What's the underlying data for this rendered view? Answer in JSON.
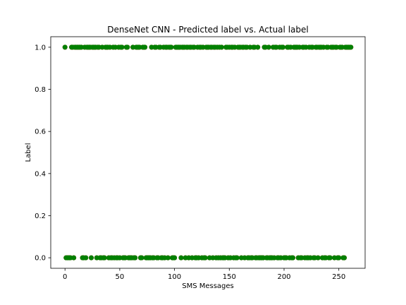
{
  "chart_data": {
    "type": "scatter",
    "title": "DenseNet CNN - Predicted label vs. Actual label",
    "xlabel": "SMS Messages",
    "ylabel": "Label",
    "xlim": [
      -13,
      274
    ],
    "ylim": [
      -0.05,
      1.05
    ],
    "xticks": [
      0,
      50,
      100,
      150,
      200,
      250
    ],
    "yticks": [
      0.0,
      0.2,
      0.4,
      0.6,
      0.8,
      1.0
    ],
    "xtick_labels": [
      "0",
      "50",
      "100",
      "150",
      "200",
      "250"
    ],
    "ytick_labels": [
      "0.0",
      "0.2",
      "0.4",
      "0.6",
      "0.8",
      "1.0"
    ],
    "grid": false,
    "series": [
      {
        "role": "actual",
        "color": "#ff0000",
        "x": [
          0,
          1,
          2,
          3,
          4,
          5,
          6,
          7,
          8,
          9,
          10,
          11,
          12,
          13,
          14,
          15,
          16,
          17,
          18,
          19,
          20,
          21,
          22,
          23,
          24,
          25,
          26,
          27,
          28,
          29,
          30,
          31,
          32,
          33,
          34,
          35,
          36,
          37,
          38,
          39,
          40,
          41,
          42,
          43,
          44,
          45,
          46,
          47,
          48,
          49,
          50,
          51,
          52,
          53,
          54,
          55,
          56,
          57,
          58,
          59,
          60,
          61,
          62,
          63,
          64,
          65,
          66,
          67,
          68,
          69,
          70,
          71,
          72,
          73,
          74,
          75,
          76,
          77,
          78,
          79,
          80,
          81,
          82,
          83,
          84,
          85,
          86,
          87,
          88,
          89,
          90,
          91,
          92,
          93,
          94,
          95,
          96,
          97,
          98,
          99,
          100,
          101,
          102,
          103,
          104,
          105,
          106,
          107,
          108,
          109,
          110,
          111,
          112,
          113,
          114,
          115,
          116,
          117,
          118,
          119,
          120,
          121,
          122,
          123,
          124,
          125,
          126,
          127,
          128,
          129,
          130,
          131,
          132,
          133,
          134,
          135,
          136,
          137,
          138,
          139,
          140,
          141,
          142,
          143,
          144,
          145,
          146,
          147,
          148,
          149,
          150,
          151,
          152,
          153,
          154,
          155,
          156,
          157,
          158,
          159,
          160,
          161,
          162,
          163,
          164,
          165,
          166,
          167,
          168,
          169,
          170,
          171,
          172,
          173,
          174,
          175,
          176,
          177,
          178,
          179,
          180,
          181,
          182,
          183,
          184,
          185,
          186,
          187,
          188,
          189,
          190,
          191,
          192,
          193,
          194,
          195,
          196,
          197,
          198,
          199,
          200,
          201,
          202,
          203,
          204,
          205,
          206,
          207,
          208,
          209,
          210,
          211,
          212,
          213,
          214,
          215,
          216,
          217,
          218,
          219,
          220,
          221,
          222,
          223,
          224,
          225,
          226,
          227,
          228,
          229,
          230,
          231,
          232,
          233,
          234,
          235,
          236,
          237,
          238,
          239,
          240,
          241,
          242,
          243,
          244,
          245,
          246,
          247,
          248,
          249,
          250,
          251,
          252,
          253,
          254,
          255,
          256,
          257,
          258,
          259,
          260,
          261
        ],
        "y": [
          1,
          0,
          0,
          0,
          0,
          0,
          1,
          1,
          0,
          1,
          1,
          1,
          1,
          1,
          1,
          1,
          0,
          0,
          1,
          0,
          1,
          1,
          1,
          1,
          0,
          1,
          1,
          1,
          1,
          0,
          1,
          1,
          0,
          0,
          1,
          0,
          0,
          1,
          1,
          1,
          0,
          1,
          0,
          0,
          1,
          0,
          1,
          0,
          0,
          1,
          0,
          1,
          1,
          0,
          0,
          0,
          1,
          1,
          0,
          0,
          0,
          0,
          1,
          0,
          0,
          1,
          1,
          1,
          1,
          0,
          0,
          1,
          1,
          1,
          0,
          0,
          0,
          0,
          0,
          1,
          0,
          0,
          1,
          1,
          0,
          0,
          1,
          1,
          0,
          0,
          1,
          0,
          1,
          1,
          0,
          1,
          1,
          1,
          0,
          0,
          0,
          1,
          1,
          1,
          1,
          1,
          0,
          1,
          1,
          1,
          0,
          1,
          1,
          0,
          1,
          1,
          0,
          1,
          1,
          0,
          0,
          1,
          0,
          1,
          1,
          0,
          1,
          0,
          0,
          1,
          1,
          1,
          0,
          1,
          1,
          0,
          1,
          1,
          0,
          1,
          0,
          1,
          0,
          1,
          0,
          0,
          0,
          1,
          1,
          0,
          1,
          0,
          1,
          1,
          0,
          1,
          0,
          0,
          1,
          1,
          1,
          0,
          1,
          1,
          0,
          1,
          1,
          0,
          0,
          1,
          0,
          0,
          1,
          1,
          0,
          0,
          1,
          0,
          0,
          0,
          0,
          0,
          1,
          1,
          0,
          0,
          1,
          0,
          0,
          0,
          1,
          0,
          1,
          1,
          0,
          0,
          1,
          0,
          1,
          1,
          0,
          0,
          0,
          1,
          1,
          0,
          1,
          0,
          0,
          1,
          1,
          1,
          1,
          0,
          1,
          0,
          0,
          1,
          1,
          0,
          1,
          0,
          0,
          1,
          0,
          1,
          1,
          0,
          0,
          1,
          1,
          0,
          1,
          1,
          1,
          0,
          1,
          0,
          0,
          1,
          1,
          0,
          0,
          1,
          1,
          1,
          0,
          1,
          1,
          0,
          0,
          1,
          1,
          1,
          0,
          0,
          1,
          1,
          1,
          1,
          1,
          1
        ]
      },
      {
        "role": "predicted",
        "color": "#008000",
        "x": [
          0,
          1,
          2,
          3,
          4,
          5,
          6,
          7,
          8,
          9,
          10,
          11,
          12,
          13,
          14,
          15,
          16,
          17,
          18,
          19,
          20,
          21,
          22,
          23,
          24,
          25,
          26,
          27,
          28,
          29,
          30,
          31,
          32,
          33,
          34,
          35,
          36,
          37,
          38,
          39,
          40,
          41,
          42,
          43,
          44,
          45,
          46,
          47,
          48,
          49,
          50,
          51,
          52,
          53,
          54,
          55,
          56,
          57,
          58,
          59,
          60,
          61,
          62,
          63,
          64,
          65,
          66,
          67,
          68,
          69,
          70,
          71,
          72,
          73,
          74,
          75,
          76,
          77,
          78,
          79,
          80,
          81,
          82,
          83,
          84,
          85,
          86,
          87,
          88,
          89,
          90,
          91,
          92,
          93,
          94,
          95,
          96,
          97,
          98,
          99,
          100,
          101,
          102,
          103,
          104,
          105,
          106,
          107,
          108,
          109,
          110,
          111,
          112,
          113,
          114,
          115,
          116,
          117,
          118,
          119,
          120,
          121,
          122,
          123,
          124,
          125,
          126,
          127,
          128,
          129,
          130,
          131,
          132,
          133,
          134,
          135,
          136,
          137,
          138,
          139,
          140,
          141,
          142,
          143,
          144,
          145,
          146,
          147,
          148,
          149,
          150,
          151,
          152,
          153,
          154,
          155,
          156,
          157,
          158,
          159,
          160,
          161,
          162,
          163,
          164,
          165,
          166,
          167,
          168,
          169,
          170,
          171,
          172,
          173,
          174,
          175,
          176,
          177,
          178,
          179,
          180,
          181,
          182,
          183,
          184,
          185,
          186,
          187,
          188,
          189,
          190,
          191,
          192,
          193,
          194,
          195,
          196,
          197,
          198,
          199,
          200,
          201,
          202,
          203,
          204,
          205,
          206,
          207,
          208,
          209,
          210,
          211,
          212,
          213,
          214,
          215,
          216,
          217,
          218,
          219,
          220,
          221,
          222,
          223,
          224,
          225,
          226,
          227,
          228,
          229,
          230,
          231,
          232,
          233,
          234,
          235,
          236,
          237,
          238,
          239,
          240,
          241,
          242,
          243,
          244,
          245,
          246,
          247,
          248,
          249,
          250,
          251,
          252,
          253,
          254,
          255,
          256,
          257,
          258,
          259,
          260,
          261
        ],
        "y": [
          1,
          0,
          0,
          0,
          0,
          0,
          1,
          1,
          0,
          1,
          1,
          1,
          1,
          1,
          1,
          1,
          0,
          0,
          1,
          0,
          1,
          1,
          1,
          1,
          0,
          1,
          1,
          1,
          1,
          0,
          1,
          1,
          0,
          0,
          1,
          0,
          0,
          1,
          1,
          1,
          0,
          1,
          0,
          0,
          1,
          0,
          1,
          0,
          0,
          1,
          0,
          1,
          1,
          0,
          0,
          0,
          1,
          1,
          0,
          0,
          0,
          0,
          1,
          0,
          0,
          1,
          1,
          1,
          1,
          0,
          0,
          1,
          1,
          1,
          0,
          0,
          0,
          0,
          0,
          1,
          0,
          0,
          1,
          1,
          0,
          0,
          1,
          1,
          0,
          0,
          1,
          0,
          1,
          1,
          0,
          1,
          1,
          1,
          0,
          0,
          0,
          1,
          1,
          1,
          1,
          1,
          0,
          1,
          1,
          1,
          0,
          1,
          1,
          0,
          1,
          1,
          0,
          1,
          1,
          0,
          0,
          1,
          0,
          1,
          1,
          0,
          1,
          0,
          0,
          1,
          1,
          1,
          0,
          1,
          1,
          0,
          1,
          1,
          0,
          1,
          0,
          1,
          0,
          1,
          0,
          0,
          0,
          1,
          1,
          0,
          1,
          0,
          1,
          1,
          0,
          1,
          0,
          0,
          1,
          1,
          1,
          0,
          1,
          1,
          0,
          1,
          1,
          0,
          0,
          1,
          0,
          0,
          1,
          1,
          0,
          0,
          1,
          0,
          0,
          0,
          0,
          0,
          1,
          1,
          0,
          0,
          1,
          0,
          0,
          0,
          1,
          0,
          1,
          1,
          0,
          0,
          1,
          0,
          1,
          1,
          0,
          0,
          0,
          1,
          1,
          0,
          1,
          0,
          0,
          1,
          1,
          1,
          1,
          0,
          1,
          0,
          0,
          1,
          1,
          0,
          1,
          0,
          0,
          1,
          0,
          1,
          1,
          0,
          0,
          1,
          1,
          0,
          1,
          1,
          1,
          0,
          1,
          0,
          0,
          1,
          1,
          0,
          0,
          1,
          1,
          1,
          0,
          1,
          1,
          0,
          0,
          1,
          1,
          1,
          0,
          0,
          1,
          1,
          1,
          1,
          1,
          1
        ]
      }
    ]
  }
}
